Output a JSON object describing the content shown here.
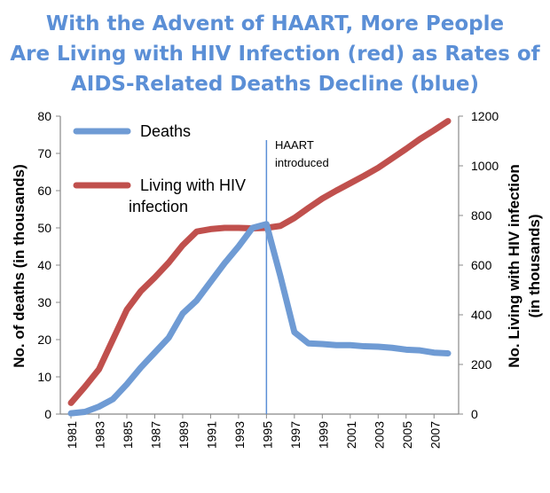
{
  "chart_data": {
    "type": "line",
    "title_lines": [
      "With the Advent of HAART, More People",
      "Are Living with HIV Infection (red) as Rates of",
      "AIDS-Related Deaths Decline (blue)"
    ],
    "x": [
      1981,
      1982,
      1983,
      1984,
      1985,
      1986,
      1987,
      1988,
      1989,
      1990,
      1991,
      1992,
      1993,
      1994,
      1995,
      1996,
      1997,
      1998,
      1999,
      2000,
      2001,
      2002,
      2003,
      2004,
      2005,
      2006,
      2007,
      2008
    ],
    "x_tick_labels": [
      "1981",
      "1983",
      "1985",
      "1987",
      "1989",
      "1991",
      "1993",
      "1995",
      "1997",
      "1999",
      "2001",
      "2003",
      "2005",
      "2007"
    ],
    "left_axis": {
      "label": "No. of deaths  (in thousands)",
      "ylim": [
        0,
        80
      ],
      "ticks": [
        "0",
        "10",
        "20",
        "30",
        "40",
        "50",
        "60",
        "70",
        "80"
      ]
    },
    "right_axis": {
      "label_lines": [
        "No. Living with HIV infection",
        "(in thousands)"
      ],
      "ylim": [
        0,
        1200
      ],
      "ticks": [
        "0",
        "200",
        "400",
        "600",
        "800",
        "1000",
        "1200"
      ]
    },
    "series": [
      {
        "name": "Deaths",
        "axis": "left",
        "color": "#6f9bd4",
        "values": [
          0.2,
          0.6,
          2,
          4,
          8,
          12.5,
          16.5,
          20.5,
          27,
          30.5,
          35.5,
          40.5,
          45,
          50,
          51,
          37,
          22,
          19,
          18.8,
          18.5,
          18.5,
          18.2,
          18.1,
          17.8,
          17.3,
          17.1,
          16.5,
          16.3
        ]
      },
      {
        "name": "Living with HIV infection",
        "legend_lines": [
          "Living with HIV",
          "infection"
        ],
        "axis": "right",
        "color": "#c0504d",
        "values": [
          45,
          110,
          180,
          300,
          420,
          495,
          550,
          610,
          680,
          735,
          745,
          750,
          750,
          748,
          750,
          758,
          790,
          830,
          868,
          900,
          930,
          960,
          992,
          1030,
          1068,
          1108,
          1143,
          1180
        ]
      }
    ],
    "annotation": {
      "lines": [
        "HAART",
        "introduced"
      ],
      "x": 1995
    }
  }
}
